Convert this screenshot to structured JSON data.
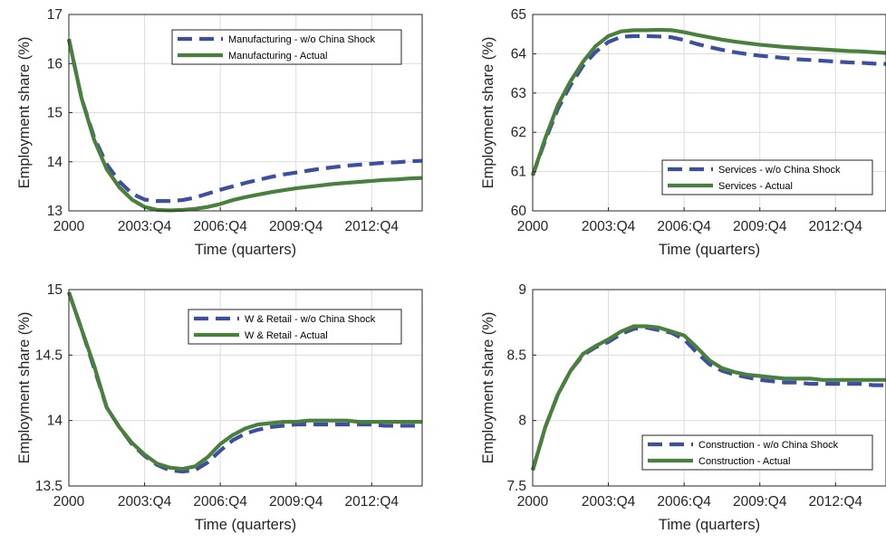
{
  "colors": {
    "counterfactual": "#3f4f9f",
    "actual": "#4a7f3e",
    "grid": "#dcdcdc",
    "axis": "#262626"
  },
  "chart_data": [
    {
      "type": "line",
      "xlabel": "Time (quarters)",
      "ylabel": "Employment share (%)",
      "xlim": [
        0,
        56
      ],
      "ylim": [
        13,
        17
      ],
      "xticks": [
        0,
        12,
        24,
        36,
        48
      ],
      "xtick_labels": [
        "2000",
        "2003:Q4",
        "2006:Q4",
        "2009:Q4",
        "2012:Q4"
      ],
      "yticks": [
        13,
        14,
        15,
        16,
        17
      ],
      "ytick_labels": [
        "13",
        "14",
        "15",
        "16",
        "17"
      ],
      "grid": true,
      "legend_position": "top-right",
      "series": [
        {
          "name": "Manufacturing - w/o China Shock",
          "style": "dashed",
          "x": [
            0,
            2,
            4,
            6,
            8,
            10,
            12,
            14,
            16,
            18,
            20,
            22,
            24,
            26,
            28,
            30,
            32,
            34,
            36,
            38,
            40,
            42,
            44,
            46,
            48,
            50,
            52,
            54,
            56
          ],
          "y": [
            16.5,
            15.3,
            14.5,
            13.95,
            13.6,
            13.35,
            13.23,
            13.2,
            13.2,
            13.22,
            13.27,
            13.35,
            13.43,
            13.5,
            13.57,
            13.63,
            13.69,
            13.74,
            13.78,
            13.82,
            13.86,
            13.89,
            13.92,
            13.94,
            13.96,
            13.98,
            13.99,
            14.01,
            14.02
          ]
        },
        {
          "name": "Manufacturing - Actual",
          "style": "solid",
          "x": [
            0,
            2,
            4,
            6,
            8,
            10,
            12,
            14,
            16,
            18,
            20,
            22,
            24,
            26,
            28,
            30,
            32,
            34,
            36,
            38,
            40,
            42,
            44,
            46,
            48,
            50,
            52,
            54,
            56
          ],
          "y": [
            16.5,
            15.3,
            14.45,
            13.85,
            13.48,
            13.23,
            13.08,
            13.02,
            13.01,
            13.02,
            13.04,
            13.08,
            13.14,
            13.22,
            13.28,
            13.33,
            13.38,
            13.42,
            13.46,
            13.49,
            13.52,
            13.55,
            13.57,
            13.59,
            13.61,
            13.63,
            13.64,
            13.66,
            13.67
          ]
        }
      ]
    },
    {
      "type": "line",
      "xlabel": "Time (quarters)",
      "ylabel": "Employment share (%)",
      "xlim": [
        0,
        56
      ],
      "ylim": [
        60,
        65
      ],
      "xticks": [
        0,
        12,
        24,
        36,
        48
      ],
      "xtick_labels": [
        "2000",
        "2003:Q4",
        "2006:Q4",
        "2009:Q4",
        "2012:Q4"
      ],
      "yticks": [
        60,
        61,
        62,
        63,
        64,
        65
      ],
      "ytick_labels": [
        "60",
        "61",
        "62",
        "63",
        "64",
        "65"
      ],
      "grid": true,
      "legend_position": "bottom-right",
      "series": [
        {
          "name": "Services - w/o China Shock",
          "style": "dashed",
          "x": [
            0,
            2,
            4,
            6,
            8,
            10,
            12,
            14,
            16,
            18,
            20,
            22,
            24,
            26,
            28,
            30,
            32,
            34,
            36,
            38,
            40,
            42,
            44,
            46,
            48,
            50,
            52,
            54,
            56
          ],
          "y": [
            60.9,
            61.8,
            62.6,
            63.2,
            63.7,
            64.05,
            64.3,
            64.43,
            64.45,
            64.45,
            64.44,
            64.42,
            64.35,
            64.25,
            64.17,
            64.1,
            64.04,
            63.99,
            63.95,
            63.92,
            63.89,
            63.86,
            63.84,
            63.82,
            63.8,
            63.78,
            63.77,
            63.75,
            63.74
          ]
        },
        {
          "name": "Services - Actual",
          "style": "solid",
          "x": [
            0,
            2,
            4,
            6,
            8,
            10,
            12,
            14,
            16,
            18,
            20,
            22,
            24,
            26,
            28,
            30,
            32,
            34,
            36,
            38,
            40,
            42,
            44,
            46,
            48,
            50,
            52,
            54,
            56
          ],
          "y": [
            60.9,
            61.85,
            62.7,
            63.3,
            63.8,
            64.2,
            64.45,
            64.57,
            64.6,
            64.6,
            64.61,
            64.6,
            64.55,
            64.48,
            64.42,
            64.36,
            64.31,
            64.27,
            64.23,
            64.2,
            64.17,
            64.15,
            64.13,
            64.11,
            64.09,
            64.07,
            64.06,
            64.04,
            64.02
          ]
        }
      ]
    },
    {
      "type": "line",
      "xlabel": "Time (quarters)",
      "ylabel": "Employment share (%)",
      "xlim": [
        0,
        56
      ],
      "ylim": [
        13.5,
        15
      ],
      "xticks": [
        0,
        12,
        24,
        36,
        48
      ],
      "xtick_labels": [
        "2000",
        "2003:Q4",
        "2006:Q4",
        "2009:Q4",
        "2012:Q4"
      ],
      "yticks": [
        13.5,
        14,
        14.5,
        15
      ],
      "ytick_labels": [
        "13.5",
        "14",
        "14.5",
        "15"
      ],
      "grid": true,
      "legend_position": "top-right",
      "series": [
        {
          "name": "W & Retail - w/o China Shock",
          "style": "dashed",
          "x": [
            0,
            2,
            4,
            6,
            8,
            10,
            12,
            14,
            16,
            18,
            20,
            22,
            24,
            26,
            28,
            30,
            32,
            34,
            36,
            38,
            40,
            42,
            44,
            46,
            48,
            50,
            52,
            54,
            56
          ],
          "y": [
            14.98,
            14.7,
            14.4,
            14.1,
            13.95,
            13.82,
            13.73,
            13.66,
            13.62,
            13.61,
            13.62,
            13.68,
            13.77,
            13.85,
            13.9,
            13.93,
            13.95,
            13.96,
            13.97,
            13.97,
            13.97,
            13.97,
            13.97,
            13.97,
            13.97,
            13.96,
            13.96,
            13.96,
            13.96
          ]
        },
        {
          "name": "W & Retail - Actual",
          "style": "solid",
          "x": [
            0,
            2,
            4,
            6,
            8,
            10,
            12,
            14,
            16,
            18,
            20,
            22,
            24,
            26,
            28,
            30,
            32,
            34,
            36,
            38,
            40,
            42,
            44,
            46,
            48,
            50,
            52,
            54,
            56
          ],
          "y": [
            14.98,
            14.7,
            14.42,
            14.1,
            13.95,
            13.83,
            13.74,
            13.67,
            13.64,
            13.63,
            13.65,
            13.72,
            13.82,
            13.89,
            13.94,
            13.97,
            13.98,
            13.99,
            13.99,
            14.0,
            14.0,
            14.0,
            14.0,
            13.99,
            13.99,
            13.99,
            13.99,
            13.99,
            13.99
          ]
        }
      ]
    },
    {
      "type": "line",
      "xlabel": "Time (quarters)",
      "ylabel": "Employment share (%)",
      "xlim": [
        0,
        56
      ],
      "ylim": [
        7.5,
        9
      ],
      "xticks": [
        0,
        12,
        24,
        36,
        48
      ],
      "xtick_labels": [
        "2000",
        "2003:Q4",
        "2006:Q4",
        "2009:Q4",
        "2012:Q4"
      ],
      "yticks": [
        7.5,
        8,
        8.5,
        9
      ],
      "ytick_labels": [
        "7.5",
        "8",
        "8.5",
        "9"
      ],
      "grid": true,
      "legend_position": "bottom-right",
      "series": [
        {
          "name": "Construction - w/o China Shock",
          "style": "dashed",
          "x": [
            0,
            2,
            4,
            6,
            8,
            10,
            12,
            14,
            16,
            18,
            20,
            22,
            24,
            26,
            28,
            30,
            32,
            34,
            36,
            38,
            40,
            42,
            44,
            46,
            48,
            50,
            52,
            54,
            56
          ],
          "y": [
            7.62,
            7.95,
            8.2,
            8.38,
            8.5,
            8.56,
            8.6,
            8.66,
            8.7,
            8.71,
            8.69,
            8.67,
            8.62,
            8.52,
            8.43,
            8.38,
            8.35,
            8.33,
            8.31,
            8.3,
            8.29,
            8.29,
            8.28,
            8.28,
            8.28,
            8.28,
            8.28,
            8.27,
            8.27
          ]
        },
        {
          "name": "Construction  - Actual",
          "style": "solid",
          "x": [
            0,
            2,
            4,
            6,
            8,
            10,
            12,
            14,
            16,
            18,
            20,
            22,
            24,
            26,
            28,
            30,
            32,
            34,
            36,
            38,
            40,
            42,
            44,
            46,
            48,
            50,
            52,
            54,
            56
          ],
          "y": [
            7.62,
            7.95,
            8.2,
            8.38,
            8.51,
            8.57,
            8.62,
            8.68,
            8.72,
            8.72,
            8.71,
            8.68,
            8.65,
            8.56,
            8.46,
            8.4,
            8.37,
            8.35,
            8.34,
            8.33,
            8.32,
            8.32,
            8.32,
            8.31,
            8.31,
            8.31,
            8.31,
            8.31,
            8.31
          ]
        }
      ]
    }
  ]
}
